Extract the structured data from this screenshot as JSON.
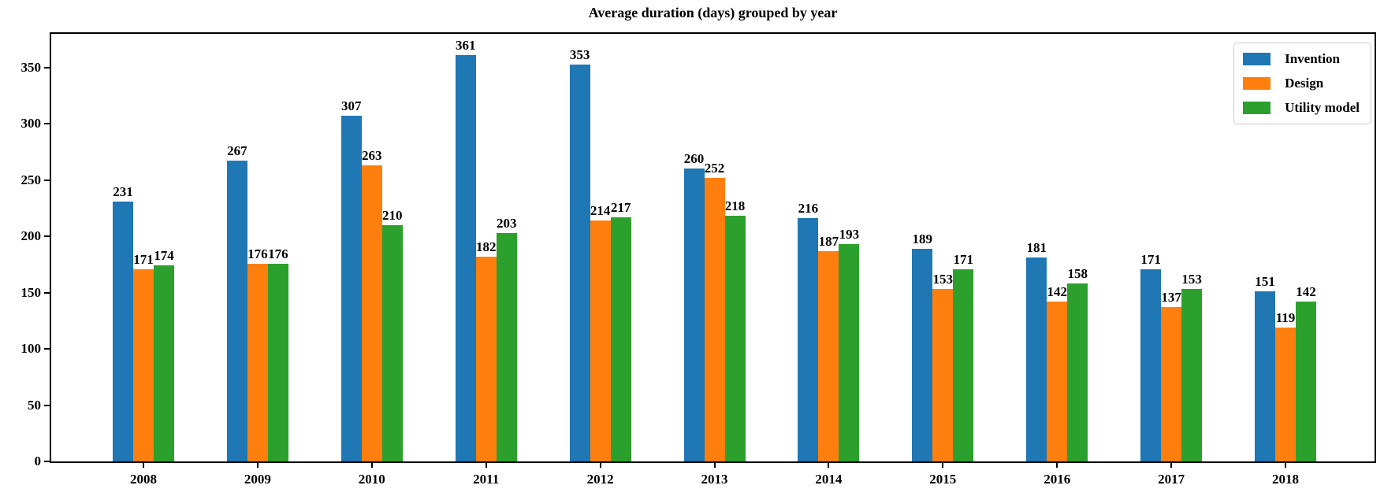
{
  "chart_data": {
    "type": "bar",
    "title": "Average duration (days) grouped by year",
    "xlabel": "",
    "ylabel": "",
    "categories": [
      "2008",
      "2009",
      "2010",
      "2011",
      "2012",
      "2013",
      "2014",
      "2015",
      "2016",
      "2017",
      "2018"
    ],
    "series": [
      {
        "name": "Invention",
        "color": "#1f77b4",
        "values": [
          231,
          267,
          307,
          361,
          353,
          260,
          216,
          189,
          181,
          171,
          151
        ]
      },
      {
        "name": "Design",
        "color": "#ff7f0e",
        "values": [
          171,
          176,
          263,
          182,
          214,
          252,
          187,
          153,
          142,
          137,
          119
        ]
      },
      {
        "name": "Utility model",
        "color": "#2ca02c",
        "values": [
          174,
          176,
          210,
          203,
          217,
          218,
          193,
          171,
          158,
          153,
          142
        ]
      }
    ],
    "y_ticks": [
      0,
      50,
      100,
      150,
      200,
      250,
      300,
      350
    ],
    "ylim": [
      0,
      380
    ],
    "grid": false,
    "bar_labels_shown": true,
    "legend_position": "upper-right",
    "axis_color": "#000000",
    "background_color": "#ffffff"
  }
}
